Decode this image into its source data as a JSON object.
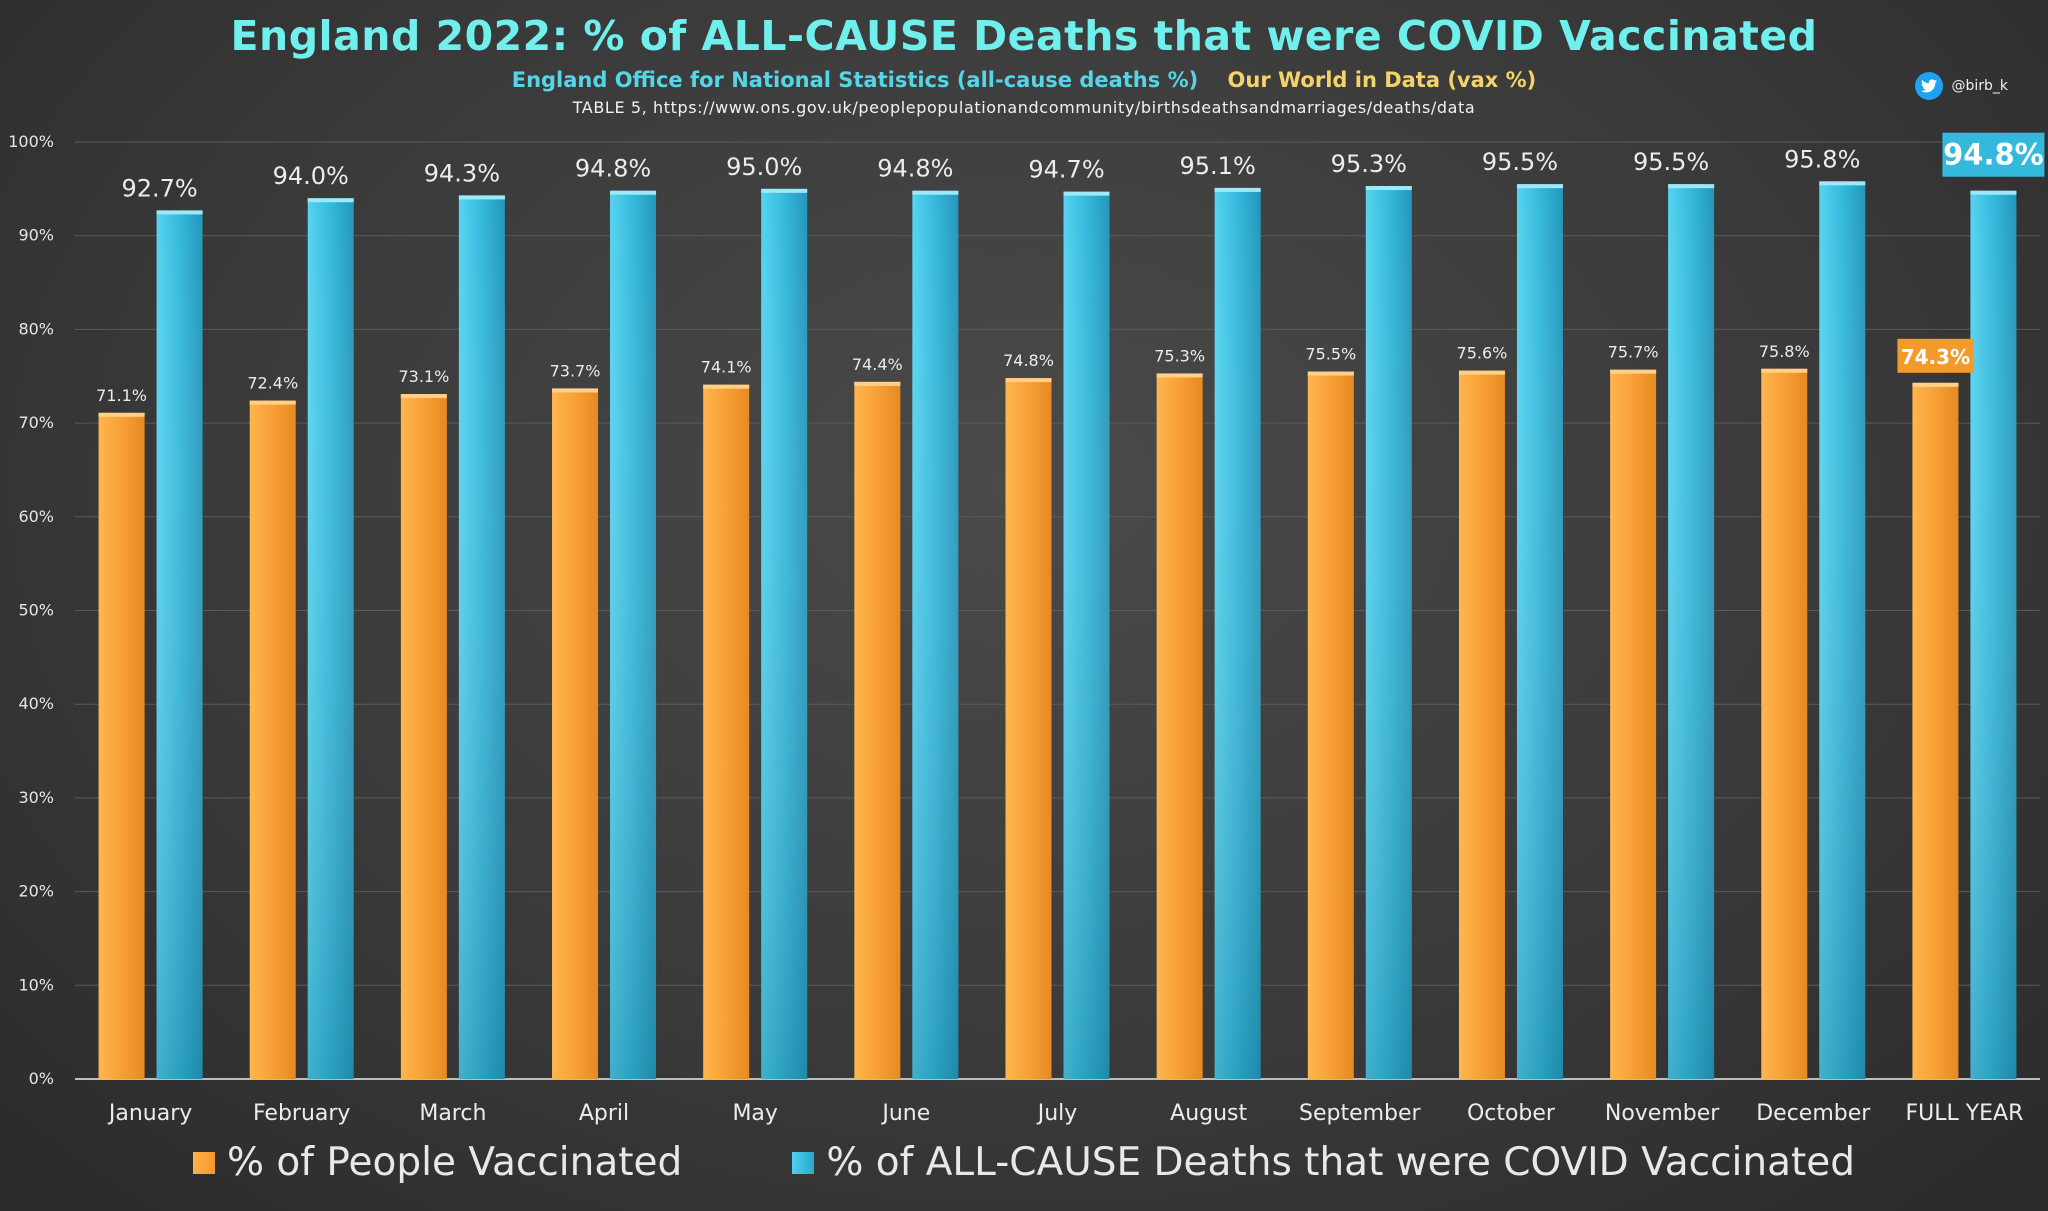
{
  "header": {
    "title": "England 2022: % of ALL-CAUSE Deaths that were COVID Vaccinated",
    "subtitle_ons": "England Office for National Statistics (all-cause deaths %)",
    "subtitle_owid": "Our World in Data (vax %)",
    "source": "TABLE 5, https://www.ons.gov.uk/peoplepopulationandcommunity/birthsdeathsandmarriages/deaths/data",
    "handle": "@birb_k"
  },
  "colors": {
    "vaccinated": "#f7a035",
    "deaths": "#34b9dd",
    "title": "#6ff0ec"
  },
  "chart_data": {
    "type": "bar",
    "title": "England 2022: % of ALL-CAUSE Deaths that were COVID Vaccinated",
    "xlabel": "",
    "ylabel": "",
    "ylim": [
      0,
      100
    ],
    "yticks": [
      "0%",
      "10%",
      "20%",
      "30%",
      "40%",
      "50%",
      "60%",
      "70%",
      "80%",
      "90%",
      "100%"
    ],
    "grid": true,
    "categories": [
      "January",
      "February",
      "March",
      "April",
      "May",
      "June",
      "July",
      "August",
      "September",
      "October",
      "November",
      "December",
      "FULL YEAR"
    ],
    "series": [
      {
        "name": "% of People Vaccinated",
        "values": [
          71.1,
          72.4,
          73.1,
          73.7,
          74.1,
          74.4,
          74.8,
          75.3,
          75.5,
          75.6,
          75.7,
          75.8,
          74.3
        ],
        "labels": [
          "71.1%",
          "72.4%",
          "73.1%",
          "73.7%",
          "74.1%",
          "74.4%",
          "74.8%",
          "75.3%",
          "75.5%",
          "75.6%",
          "75.7%",
          "75.8%",
          "74.3%"
        ]
      },
      {
        "name": "% of ALL-CAUSE Deaths that were COVID Vaccinated",
        "values": [
          92.7,
          94.0,
          94.3,
          94.8,
          95.0,
          94.8,
          94.7,
          95.1,
          95.3,
          95.5,
          95.5,
          95.8,
          94.8
        ],
        "labels": [
          "92.7%",
          "94.0%",
          "94.3%",
          "94.8%",
          "95.0%",
          "94.8%",
          "94.7%",
          "95.1%",
          "95.3%",
          "95.5%",
          "95.5%",
          "95.8%",
          "94.8%"
        ]
      }
    ],
    "legend": "bottom"
  }
}
